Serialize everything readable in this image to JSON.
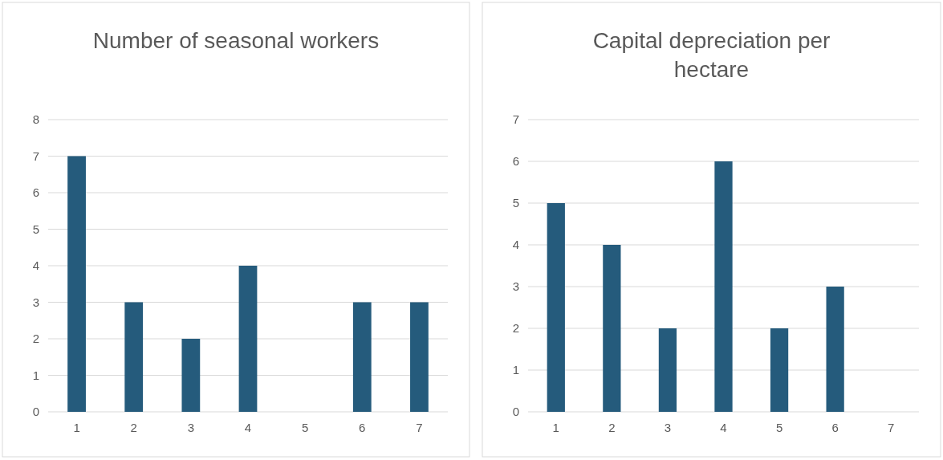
{
  "chart_data": [
    {
      "type": "bar",
      "title": "Number of seasonal workers",
      "categories": [
        "1",
        "2",
        "3",
        "4",
        "5",
        "6",
        "7"
      ],
      "values": [
        7,
        3,
        2,
        4,
        0,
        3,
        3
      ],
      "color": "#255b7c",
      "ylim": [
        0,
        8
      ],
      "yticks": [
        0,
        1,
        2,
        3,
        4,
        5,
        6,
        7,
        8
      ],
      "grid": "y"
    },
    {
      "type": "bar",
      "title": "Capital depreciation per hectare",
      "categories": [
        "1",
        "2",
        "3",
        "4",
        "5",
        "6",
        "7"
      ],
      "values": [
        5,
        4,
        2,
        6,
        2,
        3,
        0
      ],
      "color": "#255b7c",
      "ylim": [
        0,
        7
      ],
      "yticks": [
        0,
        1,
        2,
        3,
        4,
        5,
        6,
        7
      ],
      "grid": "y"
    }
  ]
}
